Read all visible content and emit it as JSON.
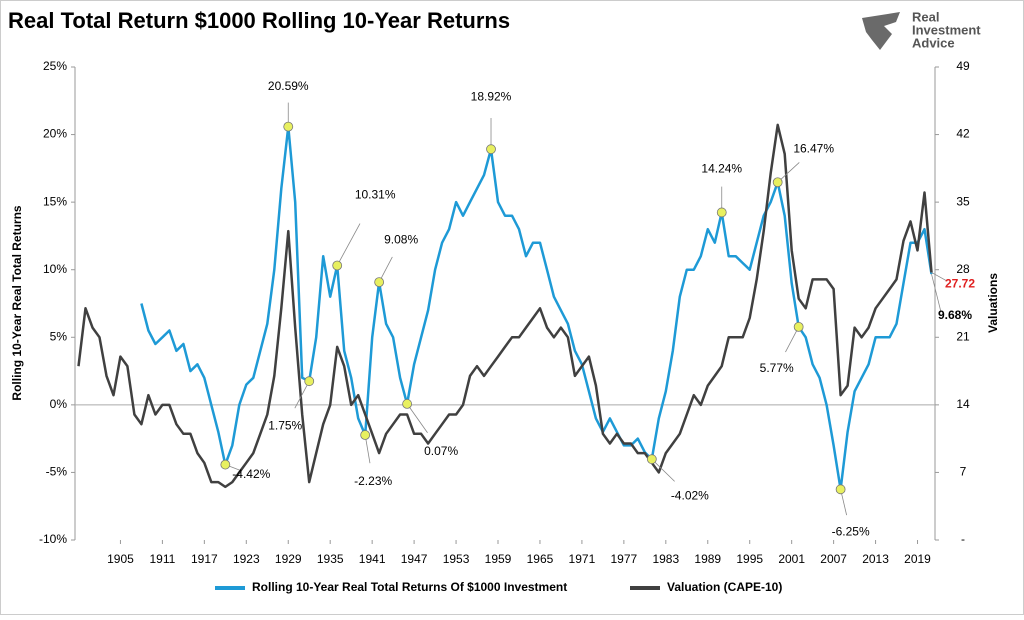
{
  "brand": [
    "Real",
    "Investment",
    "Advice"
  ],
  "chart_data": {
    "type": "line",
    "title": "Real Total Return $1000 Rolling 10-Year Returns",
    "y_label": "Rolling 10-Year Real Total Returns",
    "y2_label": "Valuations",
    "x": [
      1899,
      1900,
      1901,
      1902,
      1903,
      1904,
      1905,
      1906,
      1907,
      1908,
      1909,
      1910,
      1911,
      1912,
      1913,
      1914,
      1915,
      1916,
      1917,
      1918,
      1919,
      1920,
      1921,
      1922,
      1923,
      1924,
      1925,
      1926,
      1927,
      1928,
      1929,
      1930,
      1931,
      1932,
      1933,
      1934,
      1935,
      1936,
      1937,
      1938,
      1939,
      1940,
      1941,
      1942,
      1943,
      1944,
      1945,
      1946,
      1947,
      1948,
      1949,
      1950,
      1951,
      1952,
      1953,
      1954,
      1955,
      1956,
      1957,
      1958,
      1959,
      1960,
      1961,
      1962,
      1963,
      1964,
      1965,
      1966,
      1967,
      1968,
      1969,
      1970,
      1971,
      1972,
      1973,
      1974,
      1975,
      1976,
      1977,
      1978,
      1979,
      1980,
      1981,
      1982,
      1983,
      1984,
      1985,
      1986,
      1987,
      1988,
      1989,
      1990,
      1991,
      1992,
      1993,
      1994,
      1995,
      1996,
      1997,
      1998,
      1999,
      2000,
      2001,
      2002,
      2003,
      2004,
      2005,
      2006,
      2007,
      2008,
      2009,
      2010,
      2011,
      2012,
      2013,
      2014,
      2015,
      2016,
      2017,
      2018,
      2019,
      2020,
      2021
    ],
    "series": [
      {
        "name": "Rolling 10-Year Real Total Returns Of $1000 Investment",
        "color": "#1e9ad6",
        "values": [
          null,
          null,
          null,
          null,
          null,
          null,
          null,
          null,
          null,
          7.5,
          5.5,
          4.5,
          5,
          5.5,
          4,
          4.5,
          2.5,
          3,
          2,
          0,
          -2,
          -4.42,
          -3,
          0,
          1.5,
          2,
          4,
          6,
          10,
          16,
          20.59,
          15,
          2,
          1.75,
          5,
          11,
          8,
          10.31,
          4,
          2,
          -1,
          -2.23,
          5,
          9.08,
          6,
          5,
          2,
          0.07,
          3,
          5,
          7,
          10,
          12,
          13,
          15,
          14,
          15,
          16,
          17,
          18.92,
          15,
          14,
          14,
          13,
          11,
          12,
          12,
          10,
          8,
          7,
          6,
          4,
          3,
          1,
          -1,
          -2,
          -1,
          -2,
          -3,
          -3,
          -2.5,
          -3.5,
          -4.02,
          -1,
          1,
          4,
          8,
          10,
          10,
          11,
          13,
          12,
          14.24,
          11,
          11,
          10.5,
          10,
          12,
          14,
          15,
          16.47,
          14,
          9,
          5.77,
          5,
          3,
          2,
          0,
          -3,
          -6.25,
          -2,
          1,
          2,
          3,
          5,
          5,
          5,
          6,
          9,
          12,
          12,
          13,
          9.68
        ]
      },
      {
        "name": "Valuation (CAPE-10)",
        "color": "#404040",
        "axis": "y2",
        "values": [
          18,
          24,
          22,
          21,
          17,
          15,
          19,
          18,
          13,
          12,
          15,
          13,
          14,
          14,
          12,
          11,
          11,
          9,
          8,
          6,
          6,
          5.5,
          6,
          7,
          8,
          9,
          11,
          13,
          17,
          24,
          32,
          22,
          13,
          6,
          9,
          12,
          14,
          20,
          18,
          14,
          15,
          13,
          11,
          9,
          11,
          12,
          13,
          13,
          11,
          11,
          10,
          11,
          12,
          13,
          13,
          14,
          17,
          18,
          17,
          18,
          19,
          20,
          21,
          21,
          22,
          23,
          24,
          22,
          21,
          22,
          21,
          17,
          18,
          19,
          16,
          11,
          10,
          11,
          10,
          10,
          9,
          9,
          8,
          7,
          9,
          10,
          11,
          13,
          15,
          14,
          16,
          17,
          18,
          21,
          21,
          21,
          23,
          27,
          32,
          38,
          43,
          40,
          30,
          25,
          24,
          27,
          27,
          27,
          26,
          15,
          16,
          22,
          21,
          22,
          24,
          25,
          26,
          27,
          31,
          33,
          30,
          36,
          27.72
        ]
      }
    ],
    "xlim": [
      1898.5,
      2021.5
    ],
    "xticks": [
      1905,
      1911,
      1917,
      1923,
      1929,
      1935,
      1941,
      1947,
      1953,
      1959,
      1965,
      1971,
      1977,
      1983,
      1989,
      1995,
      2001,
      2007,
      2013,
      2019
    ],
    "ylim": [
      -10,
      25
    ],
    "yticks": [
      {
        "value": -10,
        "label": "-10%"
      },
      {
        "value": -5,
        "label": "-5%"
      },
      {
        "value": 0,
        "label": "0%"
      },
      {
        "value": 5,
        "label": "5%"
      },
      {
        "value": 10,
        "label": "10%"
      },
      {
        "value": 15,
        "label": "15%"
      },
      {
        "value": 20,
        "label": "20%"
      },
      {
        "value": 25,
        "label": "25%"
      }
    ],
    "y2lim": [
      0,
      49
    ],
    "y2ticks": [
      {
        "value": 0,
        "label": "-"
      },
      7,
      14,
      21,
      28,
      35,
      42,
      49
    ],
    "annotations": [
      {
        "x": 1920,
        "y": -4.42,
        "label": "-4.42%"
      },
      {
        "x": 1929,
        "y": 20.59,
        "label": "20.59%"
      },
      {
        "x": 1932,
        "y": 1.75,
        "label": "1.75%"
      },
      {
        "x": 1936,
        "y": 10.31,
        "label": "10.31%"
      },
      {
        "x": 1940,
        "y": -2.23,
        "label": "-2.23%"
      },
      {
        "x": 1942,
        "y": 9.08,
        "label": "9.08%"
      },
      {
        "x": 1946,
        "y": 0.07,
        "label": "0.07%"
      },
      {
        "x": 1958,
        "y": 18.92,
        "label": "18.92%"
      },
      {
        "x": 1981,
        "y": -4.02,
        "label": "-4.02%"
      },
      {
        "x": 1991,
        "y": 14.24,
        "label": "14.24%"
      },
      {
        "x": 1999,
        "y": 16.47,
        "label": "16.47%"
      },
      {
        "x": 2002,
        "y": 5.77,
        "label": "5.77%"
      },
      {
        "x": 2008,
        "y": -6.25,
        "label": "-6.25%"
      }
    ],
    "end_labels": [
      {
        "x": 2021,
        "y": 27.72,
        "label": "27.72",
        "axis": "y2",
        "color": "#e02020"
      },
      {
        "x": 2021,
        "y": 9.68,
        "label": "9.68%",
        "color": "#000000"
      }
    ]
  }
}
